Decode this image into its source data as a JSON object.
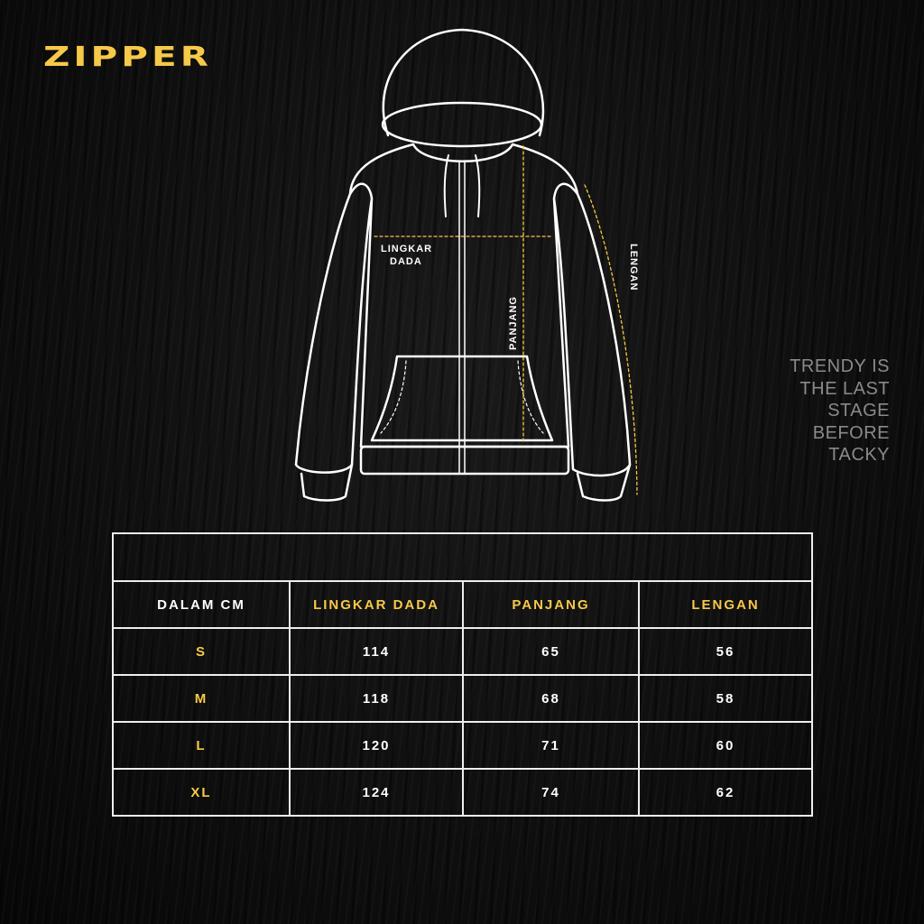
{
  "brand": "ZIPPER",
  "quote": [
    "TRENDY IS",
    "THE LAST",
    "STAGE",
    "BEFORE",
    "TACKY"
  ],
  "diagram": {
    "labels": {
      "chest_line1": "LINGKAR",
      "chest_line2": "DADA",
      "length": "PANJANG",
      "sleeve": "LENGAN"
    }
  },
  "colors": {
    "accent": "#f7c948",
    "line": "#ffffff",
    "background": "#0d0d0d"
  },
  "size_table": {
    "headers": [
      "DALAM CM",
      "LINGKAR DADA",
      "PANJANG",
      "LENGAN"
    ],
    "rows": [
      {
        "size": "S",
        "lingkar_dada": "114",
        "panjang": "65",
        "lengan": "56"
      },
      {
        "size": "M",
        "lingkar_dada": "118",
        "panjang": "68",
        "lengan": "58"
      },
      {
        "size": "L",
        "lingkar_dada": "120",
        "panjang": "71",
        "lengan": "60"
      },
      {
        "size": "XL",
        "lingkar_dada": "124",
        "panjang": "74",
        "lengan": "62"
      }
    ]
  }
}
